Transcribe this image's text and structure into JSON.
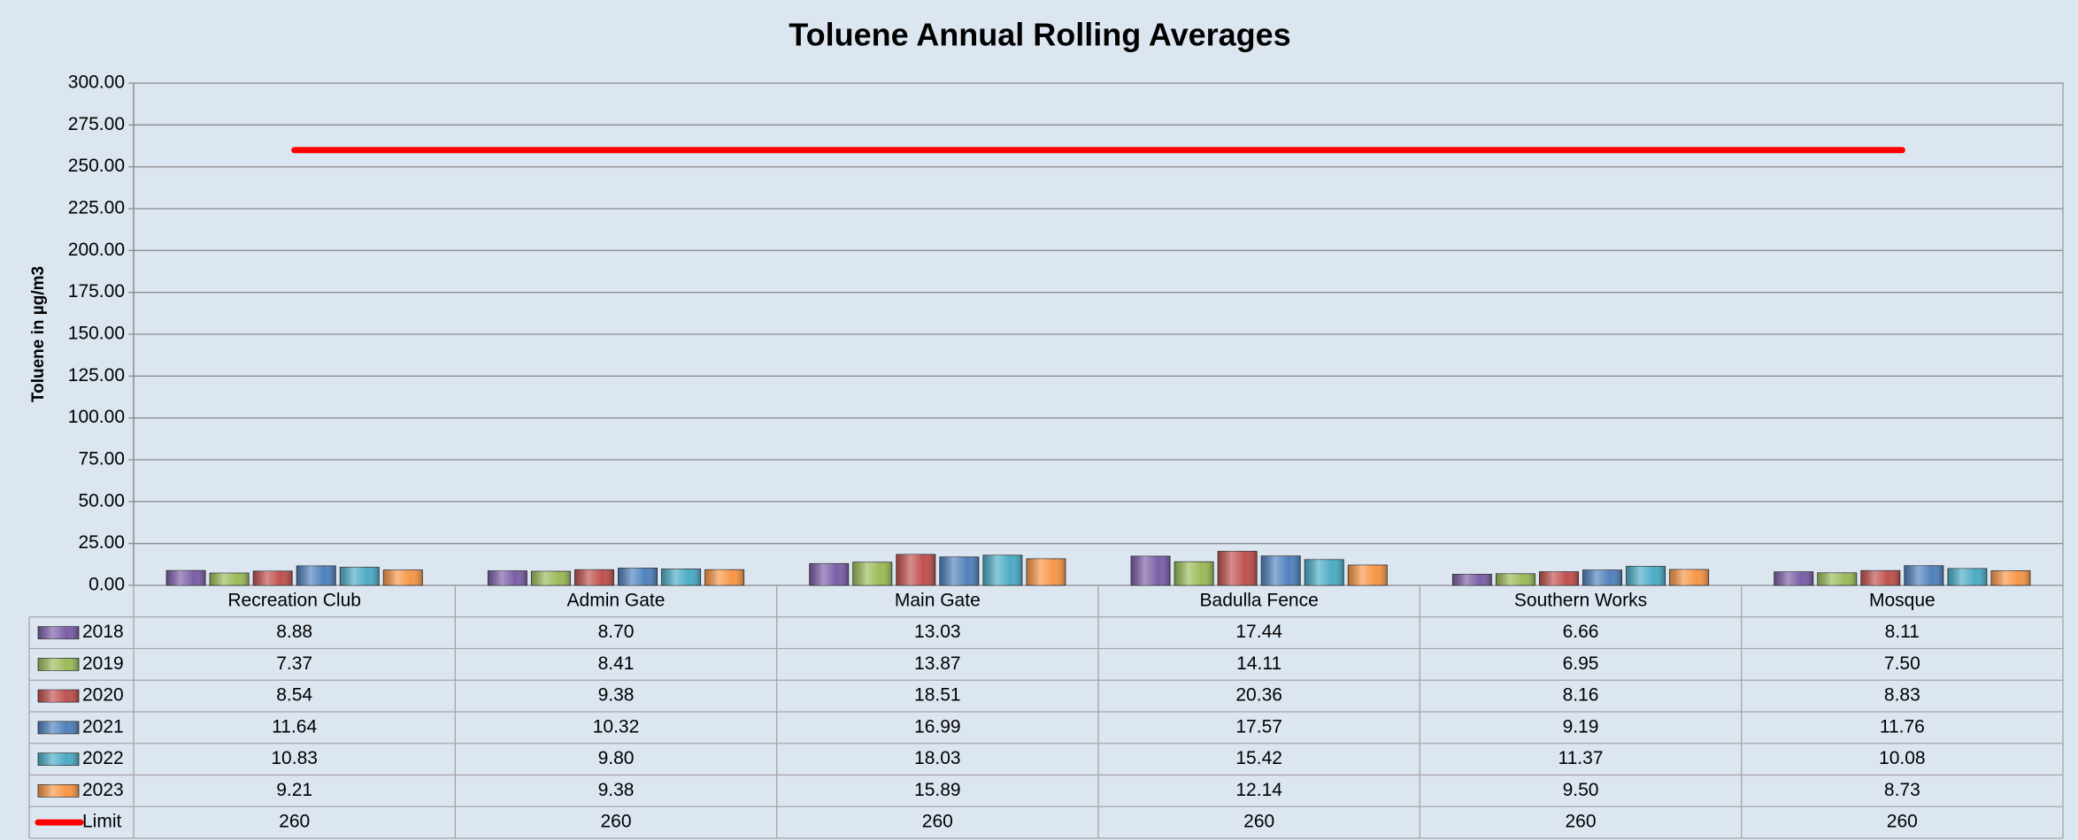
{
  "chart_data": {
    "type": "bar",
    "title": "Toluene Annual Rolling Averages",
    "y_label": "Toluene in µg/m3",
    "categories": [
      "Recreation Club",
      "Admin Gate",
      "Main Gate",
      "Badulla Fence",
      "Southern Works",
      "Mosque"
    ],
    "ylim": [
      0,
      300
    ],
    "yticks": [
      {
        "value": 0,
        "label": "0.00"
      },
      {
        "value": 25,
        "label": "25.00"
      },
      {
        "value": 50,
        "label": "50.00"
      },
      {
        "value": 75,
        "label": "75.00"
      },
      {
        "value": 100,
        "label": "100.00"
      },
      {
        "value": 125,
        "label": "125.00"
      },
      {
        "value": 150,
        "label": "150.00"
      },
      {
        "value": 175,
        "label": "175.00"
      },
      {
        "value": 200,
        "label": "200.00"
      },
      {
        "value": 225,
        "label": "225.00"
      },
      {
        "value": 250,
        "label": "250.00"
      },
      {
        "value": 275,
        "label": "275.00"
      },
      {
        "value": 300,
        "label": "300.00"
      }
    ],
    "grid": true,
    "data_table": true,
    "series": [
      {
        "name": "2018",
        "color": "#7b5ea7",
        "values": [
          8.88,
          8.7,
          13.03,
          17.44,
          6.66,
          8.11
        ],
        "value_labels": [
          "8.88",
          "8.70",
          "13.03",
          "17.44",
          "6.66",
          "8.11"
        ]
      },
      {
        "name": "2019",
        "color": "#9bbb59",
        "values": [
          7.37,
          8.41,
          13.87,
          14.11,
          6.95,
          7.5
        ],
        "value_labels": [
          "7.37",
          "8.41",
          "13.87",
          "14.11",
          "6.95",
          "7.50"
        ]
      },
      {
        "name": "2020",
        "color": "#c0504d",
        "values": [
          8.54,
          9.38,
          18.51,
          20.36,
          8.16,
          8.83
        ],
        "value_labels": [
          "8.54",
          "9.38",
          "18.51",
          "20.36",
          "8.16",
          "8.83"
        ]
      },
      {
        "name": "2021",
        "color": "#4f81bd",
        "values": [
          11.64,
          10.32,
          16.99,
          17.57,
          9.19,
          11.76
        ],
        "value_labels": [
          "11.64",
          "10.32",
          "16.99",
          "17.57",
          "9.19",
          "11.76"
        ]
      },
      {
        "name": "2022",
        "color": "#4bacc6",
        "values": [
          10.83,
          9.8,
          18.03,
          15.42,
          11.37,
          10.08
        ],
        "value_labels": [
          "10.83",
          "9.80",
          "18.03",
          "15.42",
          "11.37",
          "10.08"
        ]
      },
      {
        "name": "2023",
        "color": "#f79646",
        "values": [
          9.21,
          9.38,
          15.89,
          12.14,
          9.5,
          8.73
        ],
        "value_labels": [
          "9.21",
          "9.38",
          "15.89",
          "12.14",
          "9.50",
          "8.73"
        ]
      },
      {
        "name": "Limit",
        "color": "#ff0000",
        "type": "line",
        "values": [
          260,
          260,
          260,
          260,
          260,
          260
        ],
        "value_labels": [
          "260",
          "260",
          "260",
          "260",
          "260",
          "260"
        ]
      }
    ]
  }
}
